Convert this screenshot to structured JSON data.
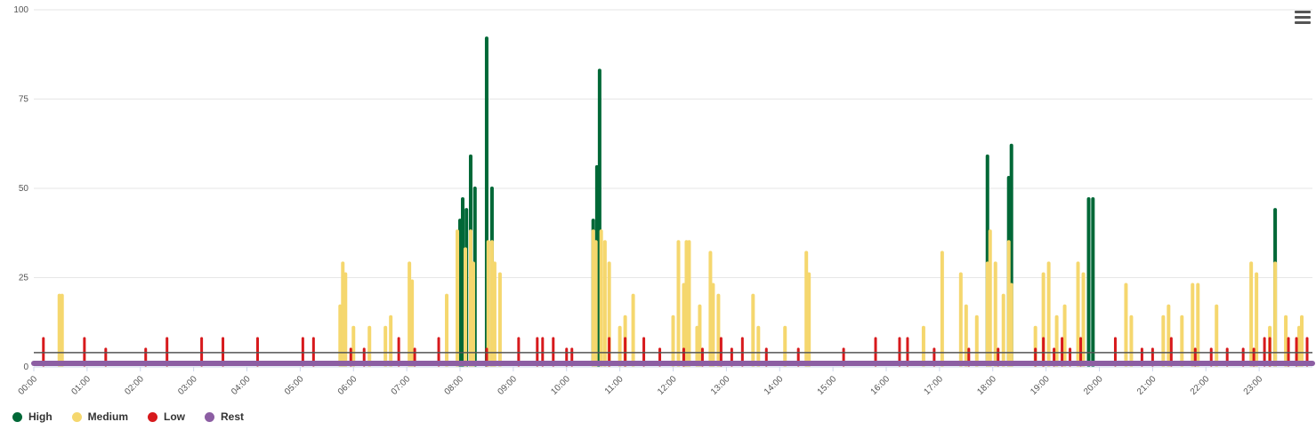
{
  "chart_data": {
    "type": "line",
    "title": "",
    "xlabel": "",
    "ylabel": "",
    "ylim": [
      0,
      100
    ],
    "xlim": [
      0,
      24
    ],
    "yticks": [
      "0",
      "25",
      "50",
      "75",
      "100"
    ],
    "xticks": [
      "00:00",
      "01:00",
      "02:00",
      "03:00",
      "04:00",
      "05:00",
      "06:00",
      "07:00",
      "08:00",
      "09:00",
      "10:00",
      "11:00",
      "12:00",
      "13:00",
      "14:00",
      "15:00",
      "16:00",
      "17:00",
      "18:00",
      "19:00",
      "20:00",
      "21:00",
      "22:00",
      "23:00"
    ],
    "threshold": 4,
    "grid": true,
    "legend_position": "bottom-left",
    "series": [
      {
        "name": "High",
        "color": "#006837",
        "peaks": [
          [
            8.0,
            41
          ],
          [
            8.05,
            47
          ],
          [
            8.12,
            44
          ],
          [
            8.2,
            59
          ],
          [
            8.28,
            50
          ],
          [
            8.5,
            92
          ],
          [
            8.6,
            50
          ],
          [
            10.5,
            41
          ],
          [
            10.57,
            56
          ],
          [
            10.62,
            83
          ],
          [
            17.9,
            59
          ],
          [
            18.3,
            53
          ],
          [
            18.35,
            62
          ],
          [
            19.8,
            47
          ],
          [
            19.88,
            47
          ],
          [
            23.3,
            44
          ]
        ]
      },
      {
        "name": "Medium",
        "color": "#f5d76e",
        "peaks": [
          [
            0.48,
            20
          ],
          [
            0.53,
            20
          ],
          [
            5.75,
            17
          ],
          [
            5.8,
            29
          ],
          [
            5.85,
            26
          ],
          [
            6.0,
            11
          ],
          [
            6.3,
            11
          ],
          [
            6.6,
            11
          ],
          [
            6.7,
            14
          ],
          [
            7.05,
            29
          ],
          [
            7.1,
            24
          ],
          [
            7.75,
            20
          ],
          [
            7.95,
            38
          ],
          [
            8.1,
            33
          ],
          [
            8.2,
            38
          ],
          [
            8.25,
            29
          ],
          [
            8.53,
            35
          ],
          [
            8.6,
            35
          ],
          [
            8.65,
            29
          ],
          [
            8.75,
            26
          ],
          [
            10.5,
            38
          ],
          [
            10.55,
            35
          ],
          [
            10.65,
            38
          ],
          [
            10.72,
            35
          ],
          [
            10.8,
            29
          ],
          [
            11.0,
            11
          ],
          [
            11.1,
            14
          ],
          [
            11.25,
            20
          ],
          [
            12.0,
            14
          ],
          [
            12.1,
            35
          ],
          [
            12.2,
            23
          ],
          [
            12.25,
            35
          ],
          [
            12.3,
            35
          ],
          [
            12.45,
            11
          ],
          [
            12.5,
            17
          ],
          [
            12.7,
            32
          ],
          [
            12.75,
            23
          ],
          [
            12.85,
            20
          ],
          [
            13.5,
            20
          ],
          [
            13.6,
            11
          ],
          [
            14.1,
            11
          ],
          [
            14.5,
            32
          ],
          [
            14.55,
            26
          ],
          [
            16.7,
            11
          ],
          [
            17.05,
            32
          ],
          [
            17.4,
            26
          ],
          [
            17.5,
            17
          ],
          [
            17.7,
            14
          ],
          [
            17.9,
            29
          ],
          [
            17.95,
            38
          ],
          [
            18.05,
            29
          ],
          [
            18.2,
            20
          ],
          [
            18.3,
            35
          ],
          [
            18.35,
            23
          ],
          [
            18.8,
            11
          ],
          [
            18.95,
            26
          ],
          [
            19.05,
            29
          ],
          [
            19.2,
            14
          ],
          [
            19.35,
            17
          ],
          [
            19.6,
            29
          ],
          [
            19.7,
            26
          ],
          [
            20.5,
            23
          ],
          [
            20.6,
            14
          ],
          [
            21.2,
            14
          ],
          [
            21.3,
            17
          ],
          [
            21.55,
            14
          ],
          [
            21.75,
            23
          ],
          [
            21.85,
            23
          ],
          [
            22.2,
            17
          ],
          [
            22.85,
            29
          ],
          [
            22.95,
            26
          ],
          [
            23.2,
            11
          ],
          [
            23.3,
            29
          ],
          [
            23.5,
            14
          ],
          [
            23.75,
            11
          ],
          [
            23.8,
            14
          ]
        ]
      },
      {
        "name": "Low",
        "color": "#d7191c",
        "peaks": [
          [
            0.18,
            8
          ],
          [
            0.95,
            8
          ],
          [
            1.35,
            5
          ],
          [
            2.1,
            5
          ],
          [
            2.5,
            8
          ],
          [
            3.15,
            8
          ],
          [
            3.55,
            8
          ],
          [
            4.2,
            8
          ],
          [
            5.05,
            8
          ],
          [
            5.25,
            8
          ],
          [
            5.95,
            5
          ],
          [
            6.2,
            5
          ],
          [
            6.85,
            8
          ],
          [
            7.15,
            5
          ],
          [
            7.6,
            8
          ],
          [
            8.5,
            5
          ],
          [
            9.1,
            8
          ],
          [
            9.45,
            8
          ],
          [
            9.55,
            8
          ],
          [
            9.75,
            8
          ],
          [
            10.0,
            5
          ],
          [
            10.1,
            5
          ],
          [
            10.8,
            8
          ],
          [
            11.1,
            8
          ],
          [
            11.45,
            8
          ],
          [
            11.75,
            5
          ],
          [
            12.2,
            5
          ],
          [
            12.55,
            5
          ],
          [
            12.9,
            8
          ],
          [
            13.1,
            5
          ],
          [
            13.3,
            8
          ],
          [
            13.75,
            5
          ],
          [
            14.35,
            5
          ],
          [
            15.2,
            5
          ],
          [
            15.8,
            8
          ],
          [
            16.25,
            8
          ],
          [
            16.4,
            8
          ],
          [
            16.9,
            5
          ],
          [
            17.55,
            5
          ],
          [
            18.1,
            5
          ],
          [
            18.8,
            5
          ],
          [
            18.95,
            8
          ],
          [
            19.15,
            5
          ],
          [
            19.3,
            8
          ],
          [
            19.45,
            5
          ],
          [
            19.65,
            8
          ],
          [
            20.3,
            8
          ],
          [
            20.8,
            5
          ],
          [
            21.0,
            5
          ],
          [
            21.35,
            8
          ],
          [
            21.8,
            5
          ],
          [
            22.1,
            5
          ],
          [
            22.4,
            5
          ],
          [
            22.7,
            5
          ],
          [
            22.9,
            5
          ],
          [
            23.1,
            8
          ],
          [
            23.2,
            8
          ],
          [
            23.55,
            8
          ],
          [
            23.7,
            8
          ],
          [
            23.9,
            8
          ]
        ]
      },
      {
        "name": "Rest",
        "color": "#8c5ea3",
        "baseline": 1
      }
    ]
  }
}
